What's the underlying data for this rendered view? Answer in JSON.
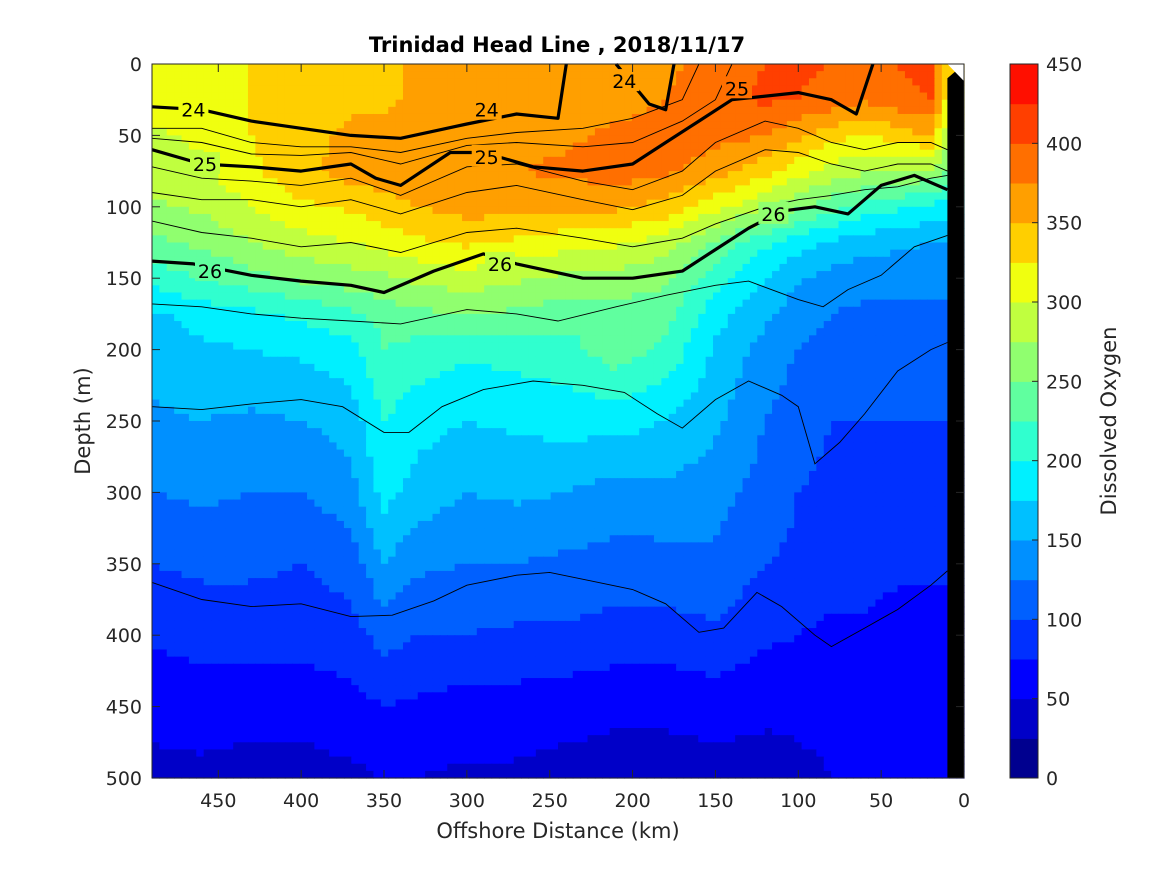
{
  "chart_data": {
    "type": "heatmap",
    "title": "Trinidad Head Line , 2018/11/17",
    "xlabel": "Offshore Distance (km)",
    "ylabel": "Depth (m)",
    "colorbar_label": "Dissolved Oxygen",
    "x_reversed": true,
    "xlim": [
      490,
      0
    ],
    "ylim": [
      0,
      500
    ],
    "y_reversed": true,
    "x_ticks": [
      450,
      400,
      350,
      300,
      250,
      200,
      150,
      100,
      50,
      0
    ],
    "y_ticks": [
      0,
      50,
      100,
      150,
      200,
      250,
      300,
      350,
      400,
      450,
      500
    ],
    "colorbar_ticks": [
      0,
      50,
      100,
      150,
      200,
      250,
      300,
      350,
      400,
      450
    ],
    "levels": [
      0,
      25,
      50,
      75,
      100,
      125,
      150,
      175,
      200,
      225,
      250,
      275,
      300,
      325,
      350,
      375,
      400,
      425,
      450
    ],
    "colormap": [
      "#00008f",
      "#0000c8",
      "#0000ff",
      "#0030ff",
      "#0060ff",
      "#0090ff",
      "#00c0ff",
      "#00f0ff",
      "#30ffcf",
      "#60ff9f",
      "#90ff6f",
      "#c0ff3f",
      "#f0ff0f",
      "#ffcf00",
      "#ff9f00",
      "#ff6f00",
      "#ff3f00",
      "#ff0f00",
      "#c80000"
    ],
    "x_nodes": [
      490,
      460,
      430,
      400,
      370,
      350,
      330,
      300,
      270,
      240,
      210,
      180,
      150,
      120,
      100,
      80,
      60,
      40,
      20,
      10
    ],
    "depth_nodes": [
      0,
      25,
      50,
      75,
      100,
      125,
      150,
      175,
      200,
      250,
      300,
      350,
      400,
      450,
      500
    ],
    "oxygen": [
      [
        315,
        315,
        325,
        335,
        345,
        345,
        355,
        360,
        360,
        360,
        360,
        370,
        385,
        400,
        405,
        400,
        395,
        400,
        410,
        330
      ],
      [
        310,
        315,
        325,
        335,
        345,
        345,
        355,
        360,
        360,
        360,
        365,
        375,
        390,
        405,
        400,
        390,
        380,
        390,
        400,
        320
      ],
      [
        295,
        305,
        325,
        340,
        355,
        355,
        360,
        365,
        365,
        370,
        380,
        385,
        385,
        375,
        355,
        335,
        320,
        340,
        350,
        280
      ],
      [
        285,
        295,
        320,
        345,
        360,
        365,
        365,
        370,
        375,
        380,
        390,
        380,
        360,
        335,
        310,
        290,
        280,
        280,
        270,
        250
      ],
      [
        270,
        280,
        300,
        320,
        330,
        340,
        350,
        360,
        360,
        355,
        355,
        340,
        310,
        280,
        255,
        235,
        215,
        205,
        195,
        185
      ],
      [
        245,
        255,
        275,
        290,
        300,
        310,
        320,
        330,
        320,
        310,
        305,
        290,
        245,
        205,
        185,
        170,
        160,
        155,
        150,
        150
      ],
      [
        210,
        225,
        240,
        255,
        265,
        270,
        280,
        290,
        280,
        270,
        265,
        255,
        210,
        175,
        155,
        140,
        135,
        135,
        130,
        130
      ],
      [
        170,
        185,
        195,
        205,
        220,
        235,
        245,
        250,
        245,
        235,
        240,
        235,
        185,
        155,
        135,
        125,
        120,
        120,
        120,
        120
      ],
      [
        160,
        170,
        175,
        180,
        190,
        225,
        215,
        205,
        210,
        215,
        240,
        220,
        170,
        140,
        125,
        115,
        110,
        110,
        110,
        110
      ],
      [
        145,
        150,
        145,
        150,
        160,
        200,
        185,
        175,
        180,
        185,
        185,
        175,
        155,
        125,
        110,
        100,
        100,
        100,
        100,
        100
      ],
      [
        125,
        130,
        125,
        125,
        140,
        185,
        165,
        150,
        155,
        150,
        140,
        145,
        135,
        115,
        100,
        95,
        95,
        90,
        90,
        90
      ],
      [
        100,
        105,
        105,
        100,
        110,
        150,
        130,
        125,
        125,
        120,
        115,
        115,
        120,
        100,
        95,
        85,
        85,
        80,
        80,
        80
      ],
      [
        80,
        85,
        85,
        85,
        90,
        110,
        100,
        100,
        95,
        95,
        90,
        90,
        95,
        80,
        75,
        70,
        70,
        65,
        65,
        65
      ],
      [
        55,
        60,
        60,
        60,
        65,
        75,
        70,
        65,
        65,
        60,
        55,
        55,
        60,
        55,
        55,
        55,
        55,
        55,
        55,
        55
      ],
      [
        45,
        45,
        40,
        40,
        45,
        50,
        50,
        45,
        45,
        40,
        40,
        40,
        40,
        40,
        45,
        50,
        50,
        50,
        50,
        50
      ]
    ],
    "density_contours": [
      {
        "label": "24",
        "points": [
          [
            490,
            30
          ],
          [
            460,
            32
          ],
          [
            430,
            40
          ],
          [
            400,
            45
          ],
          [
            370,
            50
          ],
          [
            340,
            52
          ],
          [
            300,
            42
          ],
          [
            270,
            35
          ],
          [
            245,
            38
          ],
          [
            240,
            0
          ]
        ]
      },
      {
        "label": "24",
        "points": [
          [
            210,
            0
          ],
          [
            190,
            28
          ],
          [
            180,
            32
          ],
          [
            175,
            0
          ]
        ]
      },
      {
        "label": "25",
        "points": [
          [
            490,
            60
          ],
          [
            460,
            70
          ],
          [
            430,
            72
          ],
          [
            400,
            75
          ],
          [
            370,
            70
          ],
          [
            355,
            80
          ],
          [
            340,
            85
          ],
          [
            310,
            62
          ],
          [
            290,
            62
          ],
          [
            260,
            72
          ],
          [
            230,
            75
          ],
          [
            200,
            70
          ],
          [
            180,
            55
          ],
          [
            160,
            40
          ],
          [
            140,
            25
          ],
          [
            100,
            20
          ],
          [
            80,
            25
          ],
          [
            65,
            35
          ],
          [
            55,
            0
          ]
        ]
      },
      {
        "label": "26",
        "points": [
          [
            490,
            138
          ],
          [
            465,
            140
          ],
          [
            430,
            148
          ],
          [
            400,
            152
          ],
          [
            370,
            155
          ],
          [
            350,
            160
          ],
          [
            320,
            145
          ],
          [
            290,
            133
          ],
          [
            270,
            140
          ],
          [
            230,
            150
          ],
          [
            200,
            150
          ],
          [
            170,
            145
          ],
          [
            150,
            130
          ],
          [
            130,
            115
          ],
          [
            110,
            103
          ],
          [
            90,
            100
          ],
          [
            70,
            105
          ],
          [
            50,
            85
          ],
          [
            30,
            78
          ],
          [
            10,
            88
          ]
        ]
      }
    ],
    "contour_labels": [
      {
        "text": "24",
        "x": 465,
        "y": 32
      },
      {
        "text": "24",
        "x": 288,
        "y": 32
      },
      {
        "text": "24",
        "x": 205,
        "y": 12
      },
      {
        "text": "25",
        "x": 458,
        "y": 70
      },
      {
        "text": "25",
        "x": 288,
        "y": 65
      },
      {
        "text": "25",
        "x": 137,
        "y": 17
      },
      {
        "text": "26",
        "x": 455,
        "y": 145
      },
      {
        "text": "26",
        "x": 280,
        "y": 140
      },
      {
        "text": "26",
        "x": 115,
        "y": 105
      }
    ],
    "thin_contours": [
      [
        [
          490,
          45
        ],
        [
          460,
          45
        ],
        [
          430,
          55
        ],
        [
          400,
          58
        ],
        [
          370,
          58
        ],
        [
          340,
          62
        ],
        [
          300,
          52
        ],
        [
          270,
          48
        ],
        [
          230,
          45
        ],
        [
          200,
          38
        ],
        [
          170,
          25
        ],
        [
          160,
          0
        ]
      ],
      [
        [
          490,
          52
        ],
        [
          460,
          55
        ],
        [
          430,
          63
        ],
        [
          400,
          64
        ],
        [
          370,
          62
        ],
        [
          340,
          70
        ],
        [
          300,
          57
        ],
        [
          270,
          55
        ],
        [
          230,
          58
        ],
        [
          200,
          55
        ],
        [
          170,
          40
        ],
        [
          150,
          25
        ],
        [
          140,
          0
        ]
      ],
      [
        [
          490,
          72
        ],
        [
          460,
          80
        ],
        [
          430,
          82
        ],
        [
          400,
          85
        ],
        [
          370,
          80
        ],
        [
          340,
          92
        ],
        [
          300,
          72
        ],
        [
          270,
          70
        ],
        [
          230,
          82
        ],
        [
          200,
          88
        ],
        [
          170,
          75
        ],
        [
          150,
          55
        ],
        [
          120,
          40
        ],
        [
          100,
          45
        ],
        [
          80,
          55
        ],
        [
          60,
          60
        ],
        [
          40,
          55
        ],
        [
          20,
          55
        ],
        [
          10,
          60
        ]
      ],
      [
        [
          490,
          90
        ],
        [
          460,
          95
        ],
        [
          430,
          95
        ],
        [
          400,
          100
        ],
        [
          370,
          95
        ],
        [
          340,
          105
        ],
        [
          300,
          90
        ],
        [
          270,
          85
        ],
        [
          230,
          95
        ],
        [
          200,
          102
        ],
        [
          170,
          92
        ],
        [
          150,
          75
        ],
        [
          120,
          60
        ],
        [
          100,
          62
        ],
        [
          80,
          70
        ],
        [
          60,
          75
        ],
        [
          40,
          70
        ],
        [
          20,
          70
        ],
        [
          10,
          75
        ]
      ],
      [
        [
          490,
          110
        ],
        [
          460,
          118
        ],
        [
          430,
          122
        ],
        [
          400,
          128
        ],
        [
          370,
          125
        ],
        [
          340,
          132
        ],
        [
          300,
          118
        ],
        [
          270,
          115
        ],
        [
          230,
          122
        ],
        [
          200,
          128
        ],
        [
          170,
          122
        ],
        [
          150,
          112
        ],
        [
          120,
          100
        ],
        [
          100,
          95
        ],
        [
          80,
          92
        ],
        [
          60,
          88
        ],
        [
          40,
          86
        ],
        [
          20,
          80
        ],
        [
          10,
          78
        ]
      ],
      [
        [
          490,
          168
        ],
        [
          460,
          170
        ],
        [
          430,
          175
        ],
        [
          400,
          178
        ],
        [
          370,
          180
        ],
        [
          340,
          182
        ],
        [
          300,
          172
        ],
        [
          270,
          175
        ],
        [
          245,
          180
        ],
        [
          210,
          170
        ],
        [
          180,
          162
        ],
        [
          150,
          155
        ],
        [
          130,
          152
        ],
        [
          100,
          165
        ],
        [
          85,
          170
        ],
        [
          70,
          158
        ],
        [
          50,
          148
        ],
        [
          30,
          128
        ],
        [
          10,
          120
        ]
      ],
      [
        [
          490,
          240
        ],
        [
          460,
          242
        ],
        [
          430,
          238
        ],
        [
          400,
          235
        ],
        [
          375,
          240
        ],
        [
          350,
          258
        ],
        [
          335,
          258
        ],
        [
          315,
          240
        ],
        [
          290,
          228
        ],
        [
          260,
          222
        ],
        [
          230,
          225
        ],
        [
          205,
          230
        ],
        [
          185,
          245
        ],
        [
          170,
          255
        ],
        [
          150,
          235
        ],
        [
          130,
          222
        ],
        [
          110,
          232
        ],
        [
          100,
          240
        ],
        [
          90,
          280
        ],
        [
          75,
          265
        ],
        [
          60,
          245
        ],
        [
          40,
          215
        ],
        [
          20,
          200
        ],
        [
          10,
          195
        ]
      ],
      [
        [
          490,
          363
        ],
        [
          460,
          375
        ],
        [
          430,
          380
        ],
        [
          400,
          378
        ],
        [
          370,
          387
        ],
        [
          345,
          386
        ],
        [
          320,
          376
        ],
        [
          300,
          365
        ],
        [
          270,
          358
        ],
        [
          250,
          356
        ],
        [
          225,
          362
        ],
        [
          200,
          368
        ],
        [
          180,
          378
        ],
        [
          160,
          398
        ],
        [
          145,
          395
        ],
        [
          125,
          370
        ],
        [
          110,
          380
        ],
        [
          90,
          400
        ],
        [
          80,
          408
        ],
        [
          60,
          395
        ],
        [
          40,
          382
        ],
        [
          20,
          365
        ],
        [
          10,
          355
        ]
      ]
    ],
    "land_mask": [
      [
        25,
        500
      ],
      [
        10,
        500
      ],
      [
        10,
        10
      ],
      [
        0,
        0
      ],
      [
        0,
        500
      ]
    ]
  }
}
